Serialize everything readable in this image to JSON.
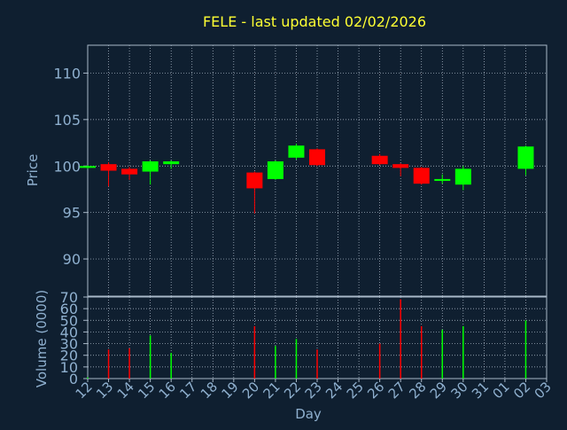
{
  "chart_data": [
    {
      "type": "candlestick",
      "title": "FELE - last updated 02/02/2026",
      "ylabel": "Price",
      "ylim": [
        86,
        113
      ],
      "yticks": [
        90,
        95,
        100,
        105,
        110
      ],
      "grid": true,
      "x": [
        "12",
        "13",
        "14",
        "15",
        "16",
        "17",
        "18",
        "19",
        "20",
        "21",
        "22",
        "23",
        "24",
        "25",
        "26",
        "27",
        "28",
        "29",
        "30",
        "31",
        "01",
        "02",
        "03"
      ],
      "candles": [
        {
          "day": "12",
          "open": 99.8,
          "close": 100.0,
          "high": 100.1,
          "low": 99.7,
          "dir": "up"
        },
        {
          "day": "13",
          "open": 100.2,
          "close": 99.5,
          "high": 100.4,
          "low": 97.8,
          "dir": "down"
        },
        {
          "day": "14",
          "open": 99.7,
          "close": 99.1,
          "high": 99.9,
          "low": 98.5,
          "dir": "down"
        },
        {
          "day": "15",
          "open": 99.4,
          "close": 100.5,
          "high": 100.6,
          "low": 98.0,
          "dir": "up"
        },
        {
          "day": "16",
          "open": 100.2,
          "close": 100.5,
          "high": 100.6,
          "low": 99.7,
          "dir": "up"
        },
        {
          "day": "20",
          "open": 99.3,
          "close": 97.6,
          "high": 99.4,
          "low": 94.9,
          "dir": "down"
        },
        {
          "day": "21",
          "open": 98.6,
          "close": 100.5,
          "high": 100.6,
          "low": 98.5,
          "dir": "up"
        },
        {
          "day": "22",
          "open": 100.9,
          "close": 102.2,
          "high": 102.4,
          "low": 100.7,
          "dir": "up"
        },
        {
          "day": "23",
          "open": 101.8,
          "close": 100.1,
          "high": 101.9,
          "low": 100.0,
          "dir": "down"
        },
        {
          "day": "26",
          "open": 101.1,
          "close": 100.2,
          "high": 101.3,
          "low": 100.1,
          "dir": "down"
        },
        {
          "day": "27",
          "open": 100.2,
          "close": 99.8,
          "high": 100.3,
          "low": 98.9,
          "dir": "down"
        },
        {
          "day": "28",
          "open": 99.8,
          "close": 98.1,
          "high": 99.9,
          "low": 98.0,
          "dir": "down"
        },
        {
          "day": "29",
          "open": 98.4,
          "close": 98.6,
          "high": 99.1,
          "low": 98.1,
          "dir": "up"
        },
        {
          "day": "30",
          "open": 98.0,
          "close": 99.7,
          "high": 100.0,
          "low": 97.4,
          "dir": "up"
        },
        {
          "day": "02",
          "open": 99.7,
          "close": 102.1,
          "high": 102.2,
          "low": 99.0,
          "dir": "up"
        }
      ]
    },
    {
      "type": "bar",
      "ylabel": "Volume (0000)",
      "xlabel": "Day",
      "ylim": [
        0,
        70
      ],
      "yticks": [
        0,
        10,
        20,
        30,
        40,
        50,
        60,
        70
      ],
      "grid": true,
      "x": [
        "12",
        "13",
        "14",
        "15",
        "16",
        "17",
        "18",
        "19",
        "20",
        "21",
        "22",
        "23",
        "24",
        "25",
        "26",
        "27",
        "28",
        "29",
        "30",
        "31",
        "01",
        "02",
        "03"
      ],
      "bars": [
        {
          "day": "12",
          "value": 1,
          "dir": "up"
        },
        {
          "day": "13",
          "value": 25,
          "dir": "down"
        },
        {
          "day": "14",
          "value": 26,
          "dir": "down"
        },
        {
          "day": "15",
          "value": 37,
          "dir": "up"
        },
        {
          "day": "16",
          "value": 22,
          "dir": "up"
        },
        {
          "day": "20",
          "value": 45,
          "dir": "down"
        },
        {
          "day": "21",
          "value": 28,
          "dir": "up"
        },
        {
          "day": "22",
          "value": 34,
          "dir": "up"
        },
        {
          "day": "23",
          "value": 25,
          "dir": "down"
        },
        {
          "day": "26",
          "value": 30,
          "dir": "down"
        },
        {
          "day": "27",
          "value": 68,
          "dir": "down"
        },
        {
          "day": "28",
          "value": 45,
          "dir": "down"
        },
        {
          "day": "29",
          "value": 42,
          "dir": "up"
        },
        {
          "day": "30",
          "value": 45,
          "dir": "up"
        },
        {
          "day": "02",
          "value": 50,
          "dir": "up"
        }
      ]
    }
  ],
  "colors": {
    "background": "#0f1f30",
    "up": "#00ff00",
    "down": "#ff0000",
    "axis_text": "#8fb0cf",
    "title": "#ffff33",
    "grid": "#b8c6d4",
    "frame": "#a8b8c8"
  }
}
